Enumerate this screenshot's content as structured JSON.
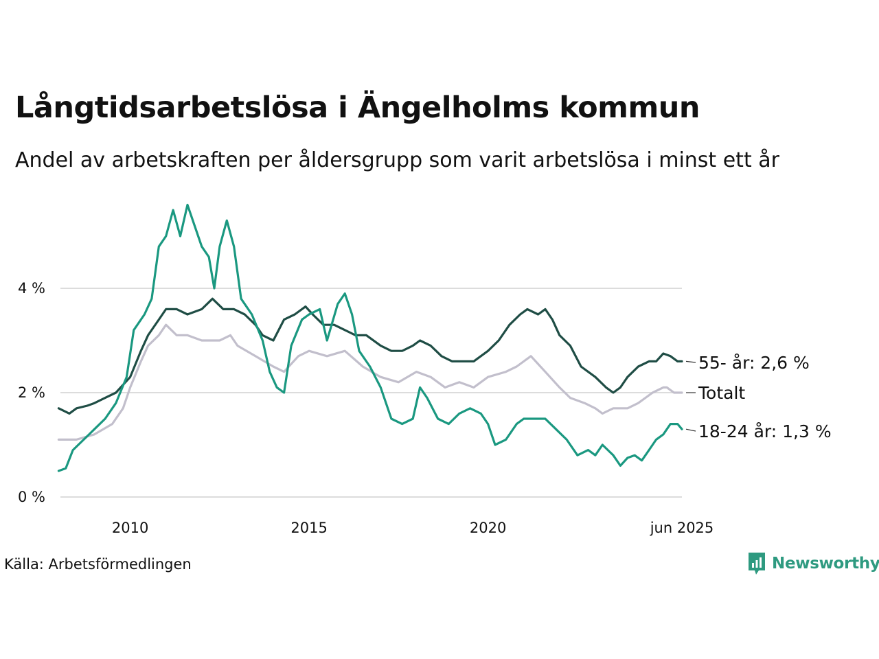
{
  "title": "Långtidsarbetslösa i Ängelholms kommun",
  "subtitle": "Andel av arbetskraften per åldersgrupp som varit arbetslösa i minst ett år",
  "source": "Källa: Arbetsförmedlingen",
  "logo_text": "Newsworthy",
  "colors": {
    "old": "#1f4d45",
    "total": "#c2bfcc",
    "young": "#1a9880",
    "grid": "#dcdcdc",
    "brand": "#2e9a80"
  },
  "chart_data": {
    "type": "line",
    "x_range": [
      2008.05,
      2025.42
    ],
    "ylim": [
      0,
      6
    ],
    "y_ticks": [
      {
        "value": 0,
        "label": "0 %"
      },
      {
        "value": 2,
        "label": "2 %"
      },
      {
        "value": 4,
        "label": "4 %"
      }
    ],
    "x_ticks": [
      {
        "value": 2010,
        "label": "2010"
      },
      {
        "value": 2015,
        "label": "2015"
      },
      {
        "value": 2020,
        "label": "2020"
      },
      {
        "value": 2025.42,
        "label": "jun 2025"
      }
    ],
    "series": [
      {
        "key": "total",
        "label": "Totalt",
        "color": "#c2bfcc",
        "points": [
          [
            2008.0,
            1.1
          ],
          [
            2008.5,
            1.1
          ],
          [
            2009.0,
            1.2
          ],
          [
            2009.5,
            1.4
          ],
          [
            2009.8,
            1.7
          ],
          [
            2010.0,
            2.1
          ],
          [
            2010.3,
            2.6
          ],
          [
            2010.5,
            2.9
          ],
          [
            2010.8,
            3.1
          ],
          [
            2011.0,
            3.3
          ],
          [
            2011.3,
            3.1
          ],
          [
            2011.6,
            3.1
          ],
          [
            2012.0,
            3.0
          ],
          [
            2012.5,
            3.0
          ],
          [
            2012.8,
            3.1
          ],
          [
            2013.0,
            2.9
          ],
          [
            2013.5,
            2.7
          ],
          [
            2014.0,
            2.5
          ],
          [
            2014.3,
            2.4
          ],
          [
            2014.7,
            2.7
          ],
          [
            2015.0,
            2.8
          ],
          [
            2015.5,
            2.7
          ],
          [
            2016.0,
            2.8
          ],
          [
            2016.5,
            2.5
          ],
          [
            2017.0,
            2.3
          ],
          [
            2017.5,
            2.2
          ],
          [
            2018.0,
            2.4
          ],
          [
            2018.4,
            2.3
          ],
          [
            2018.8,
            2.1
          ],
          [
            2019.2,
            2.2
          ],
          [
            2019.6,
            2.1
          ],
          [
            2020.0,
            2.3
          ],
          [
            2020.5,
            2.4
          ],
          [
            2020.8,
            2.5
          ],
          [
            2021.2,
            2.7
          ],
          [
            2021.6,
            2.4
          ],
          [
            2022.0,
            2.1
          ],
          [
            2022.3,
            1.9
          ],
          [
            2022.7,
            1.8
          ],
          [
            2023.0,
            1.7
          ],
          [
            2023.2,
            1.6
          ],
          [
            2023.5,
            1.7
          ],
          [
            2023.9,
            1.7
          ],
          [
            2024.2,
            1.8
          ],
          [
            2024.6,
            2.0
          ],
          [
            2024.9,
            2.1
          ],
          [
            2025.0,
            2.1
          ],
          [
            2025.2,
            2.0
          ],
          [
            2025.42,
            2.0
          ]
        ]
      },
      {
        "key": "old",
        "label": "55- år: 2,6 %",
        "color": "#1f4d45",
        "points": [
          [
            2008.0,
            1.7
          ],
          [
            2008.3,
            1.6
          ],
          [
            2008.5,
            1.7
          ],
          [
            2008.8,
            1.75
          ],
          [
            2009.0,
            1.8
          ],
          [
            2009.3,
            1.9
          ],
          [
            2009.6,
            2.0
          ],
          [
            2010.0,
            2.3
          ],
          [
            2010.3,
            2.8
          ],
          [
            2010.5,
            3.1
          ],
          [
            2010.8,
            3.4
          ],
          [
            2011.0,
            3.6
          ],
          [
            2011.3,
            3.6
          ],
          [
            2011.6,
            3.5
          ],
          [
            2012.0,
            3.6
          ],
          [
            2012.3,
            3.8
          ],
          [
            2012.6,
            3.6
          ],
          [
            2012.9,
            3.6
          ],
          [
            2013.2,
            3.5
          ],
          [
            2013.5,
            3.3
          ],
          [
            2013.7,
            3.1
          ],
          [
            2014.0,
            3.0
          ],
          [
            2014.3,
            3.4
          ],
          [
            2014.6,
            3.5
          ],
          [
            2014.9,
            3.65
          ],
          [
            2015.1,
            3.5
          ],
          [
            2015.4,
            3.3
          ],
          [
            2015.7,
            3.3
          ],
          [
            2016.0,
            3.2
          ],
          [
            2016.3,
            3.1
          ],
          [
            2016.6,
            3.1
          ],
          [
            2017.0,
            2.9
          ],
          [
            2017.3,
            2.8
          ],
          [
            2017.6,
            2.8
          ],
          [
            2017.9,
            2.9
          ],
          [
            2018.1,
            3.0
          ],
          [
            2018.4,
            2.9
          ],
          [
            2018.7,
            2.7
          ],
          [
            2019.0,
            2.6
          ],
          [
            2019.3,
            2.6
          ],
          [
            2019.6,
            2.6
          ],
          [
            2020.0,
            2.8
          ],
          [
            2020.3,
            3.0
          ],
          [
            2020.6,
            3.3
          ],
          [
            2020.9,
            3.5
          ],
          [
            2021.1,
            3.6
          ],
          [
            2021.4,
            3.5
          ],
          [
            2021.6,
            3.6
          ],
          [
            2021.8,
            3.4
          ],
          [
            2022.0,
            3.1
          ],
          [
            2022.3,
            2.9
          ],
          [
            2022.6,
            2.5
          ],
          [
            2023.0,
            2.3
          ],
          [
            2023.3,
            2.1
          ],
          [
            2023.5,
            2.0
          ],
          [
            2023.7,
            2.1
          ],
          [
            2023.9,
            2.3
          ],
          [
            2024.2,
            2.5
          ],
          [
            2024.5,
            2.6
          ],
          [
            2024.7,
            2.6
          ],
          [
            2024.9,
            2.75
          ],
          [
            2025.1,
            2.7
          ],
          [
            2025.3,
            2.6
          ],
          [
            2025.42,
            2.6
          ]
        ]
      },
      {
        "key": "young",
        "label": "18-24 år: 1,3 %",
        "color": "#1a9880",
        "points": [
          [
            2008.0,
            0.5
          ],
          [
            2008.2,
            0.55
          ],
          [
            2008.4,
            0.9
          ],
          [
            2008.7,
            1.1
          ],
          [
            2009.0,
            1.3
          ],
          [
            2009.3,
            1.5
          ],
          [
            2009.6,
            1.8
          ],
          [
            2009.9,
            2.3
          ],
          [
            2010.1,
            3.2
          ],
          [
            2010.4,
            3.5
          ],
          [
            2010.6,
            3.8
          ],
          [
            2010.8,
            4.8
          ],
          [
            2011.0,
            5.0
          ],
          [
            2011.2,
            5.5
          ],
          [
            2011.4,
            5.0
          ],
          [
            2011.6,
            5.6
          ],
          [
            2011.8,
            5.2
          ],
          [
            2012.0,
            4.8
          ],
          [
            2012.2,
            4.6
          ],
          [
            2012.35,
            4.0
          ],
          [
            2012.5,
            4.8
          ],
          [
            2012.7,
            5.3
          ],
          [
            2012.9,
            4.8
          ],
          [
            2013.1,
            3.8
          ],
          [
            2013.4,
            3.5
          ],
          [
            2013.7,
            3.0
          ],
          [
            2013.9,
            2.4
          ],
          [
            2014.1,
            2.1
          ],
          [
            2014.3,
            2.0
          ],
          [
            2014.5,
            2.9
          ],
          [
            2014.8,
            3.4
          ],
          [
            2015.0,
            3.5
          ],
          [
            2015.3,
            3.6
          ],
          [
            2015.5,
            3.0
          ],
          [
            2015.8,
            3.7
          ],
          [
            2016.0,
            3.9
          ],
          [
            2016.2,
            3.5
          ],
          [
            2016.4,
            2.8
          ],
          [
            2016.7,
            2.5
          ],
          [
            2017.0,
            2.1
          ],
          [
            2017.3,
            1.5
          ],
          [
            2017.6,
            1.4
          ],
          [
            2017.9,
            1.5
          ],
          [
            2018.1,
            2.1
          ],
          [
            2018.3,
            1.9
          ],
          [
            2018.6,
            1.5
          ],
          [
            2018.9,
            1.4
          ],
          [
            2019.2,
            1.6
          ],
          [
            2019.5,
            1.7
          ],
          [
            2019.8,
            1.6
          ],
          [
            2020.0,
            1.4
          ],
          [
            2020.2,
            1.0
          ],
          [
            2020.5,
            1.1
          ],
          [
            2020.8,
            1.4
          ],
          [
            2021.0,
            1.5
          ],
          [
            2021.3,
            1.5
          ],
          [
            2021.6,
            1.5
          ],
          [
            2021.9,
            1.3
          ],
          [
            2022.2,
            1.1
          ],
          [
            2022.5,
            0.8
          ],
          [
            2022.8,
            0.9
          ],
          [
            2023.0,
            0.8
          ],
          [
            2023.2,
            1.0
          ],
          [
            2023.5,
            0.8
          ],
          [
            2023.7,
            0.6
          ],
          [
            2023.9,
            0.75
          ],
          [
            2024.1,
            0.8
          ],
          [
            2024.3,
            0.7
          ],
          [
            2024.5,
            0.9
          ],
          [
            2024.7,
            1.1
          ],
          [
            2024.9,
            1.2
          ],
          [
            2025.1,
            1.4
          ],
          [
            2025.3,
            1.4
          ],
          [
            2025.42,
            1.3
          ]
        ]
      }
    ]
  }
}
